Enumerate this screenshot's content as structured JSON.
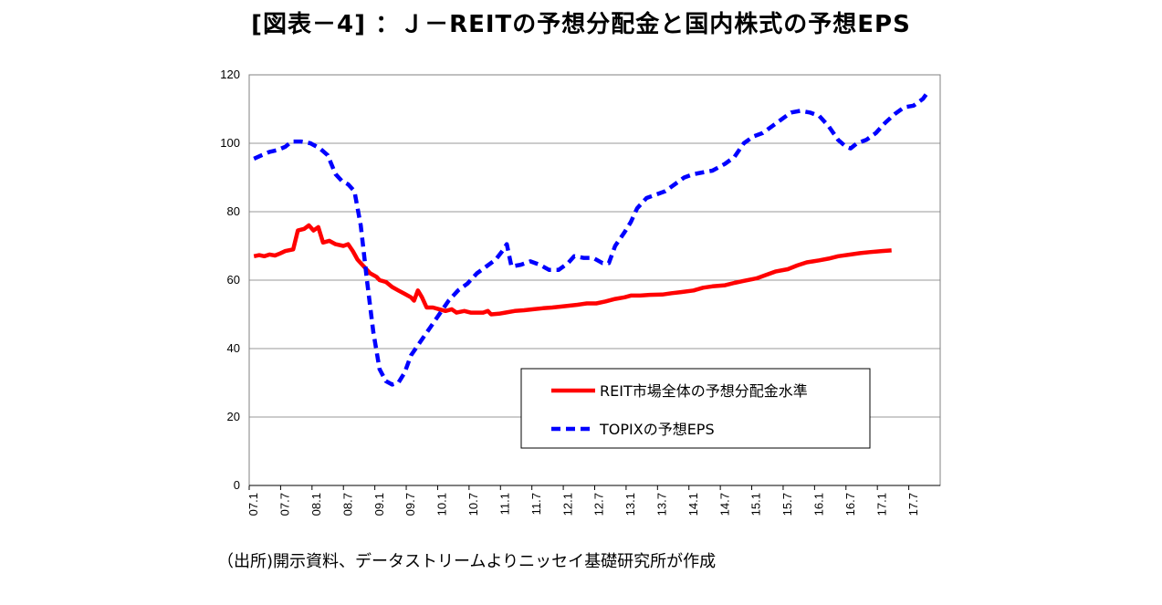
{
  "title": "[図表－4] ：Ｊ－REITの予想分配金と国内株式の予想EPS",
  "source": "（出所)開示資料、データストリームよりニッセイ基礎研究所が作成",
  "chart_data": {
    "type": "line",
    "title": "[図表－4] ：Ｊ－REITの予想分配金と国内株式の予想EPS",
    "xlabel": "",
    "ylabel": "",
    "ylim": [
      0,
      120
    ],
    "yticks": [
      0,
      20,
      40,
      60,
      80,
      100,
      120
    ],
    "grid": true,
    "legend_position": "bottom-right",
    "categories": [
      "07.1",
      "07.7",
      "08.1",
      "08.7",
      "09.1",
      "09.7",
      "10.1",
      "10.7",
      "11.1",
      "11.7",
      "12.1",
      "12.7",
      "13.1",
      "13.7",
      "14.1",
      "14.7",
      "15.1",
      "15.7",
      "16.1",
      "16.7",
      "17.1",
      "17.7"
    ],
    "series": [
      {
        "name": "REIT市場全体の予想分配金水準",
        "color": "#ff0000",
        "style": "solid",
        "points": [
          [
            0,
            67
          ],
          [
            0.17,
            67.3
          ],
          [
            0.33,
            67
          ],
          [
            0.5,
            67.5
          ],
          [
            0.67,
            67.2
          ],
          [
            0.83,
            67.8
          ],
          [
            1,
            68.5
          ],
          [
            1.25,
            69
          ],
          [
            1.4,
            74.5
          ],
          [
            1.6,
            75
          ],
          [
            1.75,
            76
          ],
          [
            1.9,
            74.5
          ],
          [
            2.05,
            75.5
          ],
          [
            2.2,
            71
          ],
          [
            2.4,
            71.5
          ],
          [
            2.6,
            70.5
          ],
          [
            2.85,
            70
          ],
          [
            3.0,
            70.5
          ],
          [
            3.15,
            68.5
          ],
          [
            3.3,
            66
          ],
          [
            3.5,
            64
          ],
          [
            3.7,
            62
          ],
          [
            3.9,
            61
          ],
          [
            4.0,
            60
          ],
          [
            4.2,
            59.5
          ],
          [
            4.4,
            58
          ],
          [
            4.6,
            57
          ],
          [
            4.8,
            56
          ],
          [
            5.0,
            55
          ],
          [
            5.1,
            54
          ],
          [
            5.22,
            57
          ],
          [
            5.35,
            55
          ],
          [
            5.5,
            52
          ],
          [
            5.7,
            52
          ],
          [
            5.9,
            51.5
          ],
          [
            6.1,
            51
          ],
          [
            6.3,
            51.5
          ],
          [
            6.45,
            50.5
          ],
          [
            6.7,
            51
          ],
          [
            6.9,
            50.5
          ],
          [
            7.1,
            50.5
          ],
          [
            7.3,
            50.5
          ],
          [
            7.45,
            51
          ],
          [
            7.55,
            50
          ],
          [
            7.8,
            50.2
          ],
          [
            8.0,
            50.5
          ],
          [
            8.3,
            51
          ],
          [
            8.6,
            51.2
          ],
          [
            8.9,
            51.5
          ],
          [
            9.2,
            51.8
          ],
          [
            9.5,
            52
          ],
          [
            9.8,
            52.3
          ],
          [
            10,
            52.5
          ],
          [
            10.3,
            52.8
          ],
          [
            10.6,
            53.2
          ],
          [
            10.9,
            53.2
          ],
          [
            11.2,
            53.8
          ],
          [
            11.5,
            54.5
          ],
          [
            11.8,
            55
          ],
          [
            12,
            55.5
          ],
          [
            12.3,
            55.5
          ],
          [
            12.6,
            55.7
          ],
          [
            13,
            55.8
          ],
          [
            13.3,
            56.2
          ],
          [
            13.6,
            56.5
          ],
          [
            14,
            57
          ],
          [
            14.3,
            57.8
          ],
          [
            14.6,
            58.2
          ],
          [
            15,
            58.5
          ],
          [
            15.3,
            59.2
          ],
          [
            15.6,
            59.8
          ],
          [
            16,
            60.5
          ],
          [
            16.3,
            61.5
          ],
          [
            16.6,
            62.5
          ],
          [
            17,
            63.2
          ],
          [
            17.3,
            64.3
          ],
          [
            17.6,
            65.2
          ],
          [
            18,
            65.8
          ],
          [
            18.3,
            66.3
          ],
          [
            18.6,
            67
          ],
          [
            19,
            67.5
          ],
          [
            19.3,
            67.9
          ],
          [
            19.6,
            68.2
          ],
          [
            20,
            68.5
          ],
          [
            20.3,
            68.7
          ]
        ]
      },
      {
        "name": "TOPIXの予想EPS",
        "color": "#0000ff",
        "style": "dashed",
        "points": [
          [
            0,
            95.5
          ],
          [
            0.25,
            96.5
          ],
          [
            0.5,
            97.5
          ],
          [
            0.75,
            98
          ],
          [
            1,
            99
          ],
          [
            1.2,
            100.5
          ],
          [
            1.5,
            100.5
          ],
          [
            1.8,
            100
          ],
          [
            2.1,
            98.5
          ],
          [
            2.35,
            96.5
          ],
          [
            2.6,
            91
          ],
          [
            2.8,
            89
          ],
          [
            3.0,
            88
          ],
          [
            3.2,
            86
          ],
          [
            3.4,
            76
          ],
          [
            3.6,
            60
          ],
          [
            3.8,
            45
          ],
          [
            4.0,
            34
          ],
          [
            4.2,
            30.5
          ],
          [
            4.4,
            29.5
          ],
          [
            4.6,
            30
          ],
          [
            4.8,
            33
          ],
          [
            5.0,
            38
          ],
          [
            5.3,
            42
          ],
          [
            5.6,
            46
          ],
          [
            5.9,
            50
          ],
          [
            6.2,
            54
          ],
          [
            6.5,
            57
          ],
          [
            6.8,
            59
          ],
          [
            7.1,
            62
          ],
          [
            7.4,
            64
          ],
          [
            7.7,
            66
          ],
          [
            7.95,
            69
          ],
          [
            8.05,
            70.5
          ],
          [
            8.2,
            64
          ],
          [
            8.5,
            64.5
          ],
          [
            8.8,
            65.5
          ],
          [
            9.1,
            64.5
          ],
          [
            9.4,
            63
          ],
          [
            9.7,
            63
          ],
          [
            10,
            65
          ],
          [
            10.2,
            67
          ],
          [
            10.5,
            66.5
          ],
          [
            10.8,
            66.5
          ],
          [
            11.1,
            65
          ],
          [
            11.3,
            65
          ],
          [
            11.5,
            70
          ],
          [
            11.8,
            74
          ],
          [
            12.0,
            77
          ],
          [
            12.2,
            81
          ],
          [
            12.5,
            84
          ],
          [
            12.8,
            85
          ],
          [
            13.1,
            86
          ],
          [
            13.4,
            88
          ],
          [
            13.7,
            90
          ],
          [
            14,
            91
          ],
          [
            14.3,
            91.5
          ],
          [
            14.6,
            92
          ],
          [
            15,
            94
          ],
          [
            15.3,
            96
          ],
          [
            15.6,
            100
          ],
          [
            15.9,
            102
          ],
          [
            16.2,
            103
          ],
          [
            16.5,
            105
          ],
          [
            16.8,
            107
          ],
          [
            17.1,
            109
          ],
          [
            17.4,
            109.5
          ],
          [
            17.7,
            109
          ],
          [
            18.0,
            108
          ],
          [
            18.3,
            105
          ],
          [
            18.6,
            101
          ],
          [
            18.85,
            99
          ],
          [
            19.0,
            98.5
          ],
          [
            19.2,
            100
          ],
          [
            19.5,
            101
          ],
          [
            19.8,
            103
          ],
          [
            20.1,
            106
          ],
          [
            20.4,
            108.5
          ],
          [
            20.7,
            110.5
          ],
          [
            21.0,
            111
          ],
          [
            21.3,
            113
          ],
          [
            21.5,
            115.5
          ]
        ]
      }
    ]
  }
}
